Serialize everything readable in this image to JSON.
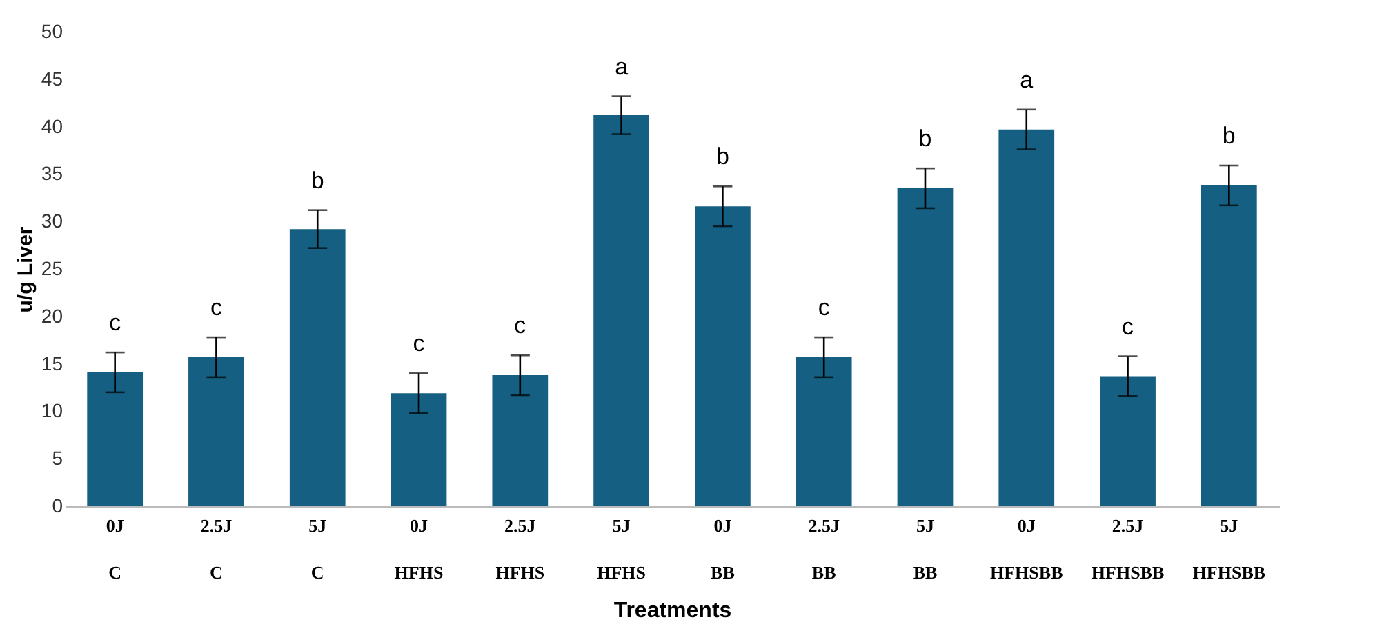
{
  "chart_data": {
    "type": "bar",
    "xlabel": "Treatments",
    "ylabel": "u/g Liver",
    "categories": [
      "0J\nC",
      "2.5J\nC",
      "5J\nC",
      "0J\nHFHS",
      "2.5J\nHFHS",
      "5J\nHFHS",
      "0J\nBB",
      "2.5J\nBB",
      "5J\nBB",
      "0J\nHFHSBB",
      "2.5J\nHFHSBB",
      "5J\nHFHSBB"
    ],
    "values": [
      14.1,
      15.7,
      29.2,
      11.9,
      13.8,
      41.2,
      31.6,
      15.7,
      33.5,
      39.7,
      13.7,
      33.8
    ],
    "errors": [
      2.1,
      2.1,
      2.0,
      2.1,
      2.1,
      2.0,
      2.1,
      2.1,
      2.1,
      2.1,
      2.1,
      2.1
    ],
    "color": "#156082",
    "ylim": [
      0,
      50
    ],
    "yticks": [
      0,
      5,
      10,
      15,
      20,
      25,
      30,
      35,
      40,
      45,
      50
    ],
    "grid": false,
    "annotations": [
      {
        "text": "c",
        "x": "0J\nC",
        "y": 16.2
      },
      {
        "text": "c",
        "x": "2.5J\nC",
        "y": 17.8
      },
      {
        "text": "b",
        "x": "5J\nC",
        "y": 31.2
      },
      {
        "text": "c",
        "x": "0J\nHFHS",
        "y": 14.0
      },
      {
        "text": "c",
        "x": "2.5J\nHFHS",
        "y": 15.9
      },
      {
        "text": "a",
        "x": "5J\nHFHS",
        "y": 43.2
      },
      {
        "text": "b",
        "x": "0J\nBB",
        "y": 33.7
      },
      {
        "text": "c",
        "x": "2.5J\nBB",
        "y": 17.8
      },
      {
        "text": "b",
        "x": "5J\nBB",
        "y": 35.6
      },
      {
        "text": "a",
        "x": "0J\nHFHSBB",
        "y": 41.8
      },
      {
        "text": "c",
        "x": "2.5J\nHFHSBB",
        "y": 15.8
      },
      {
        "text": "b",
        "x": "5J\nHFHSBB",
        "y": 35.9
      }
    ]
  }
}
